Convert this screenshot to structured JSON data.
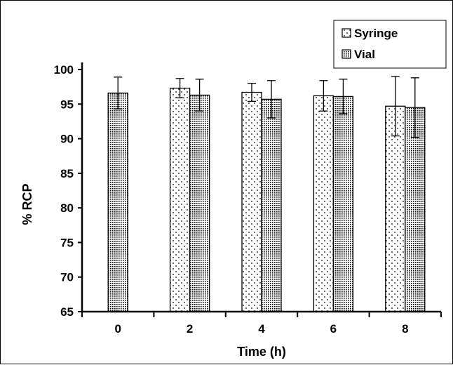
{
  "chart_data": {
    "type": "bar",
    "xlabel": "Time (h)",
    "ylabel": "% RCP",
    "ylim": [
      65,
      100
    ],
    "yticks": [
      65,
      70,
      75,
      80,
      85,
      90,
      95,
      100
    ],
    "categories": [
      "0",
      "2",
      "4",
      "6",
      "8"
    ],
    "legend_position": "top-right",
    "series": [
      {
        "name": "Syringe",
        "pattern": "sparse-dots",
        "values": [
          null,
          97.3,
          96.7,
          96.2,
          94.7
        ],
        "error": [
          null,
          1.4,
          1.3,
          2.2,
          4.3
        ]
      },
      {
        "name": "Vial",
        "pattern": "dense-dots",
        "values": [
          96.6,
          96.3,
          95.7,
          96.1,
          94.5
        ],
        "error": [
          2.3,
          2.3,
          2.7,
          2.5,
          4.3
        ]
      }
    ]
  }
}
